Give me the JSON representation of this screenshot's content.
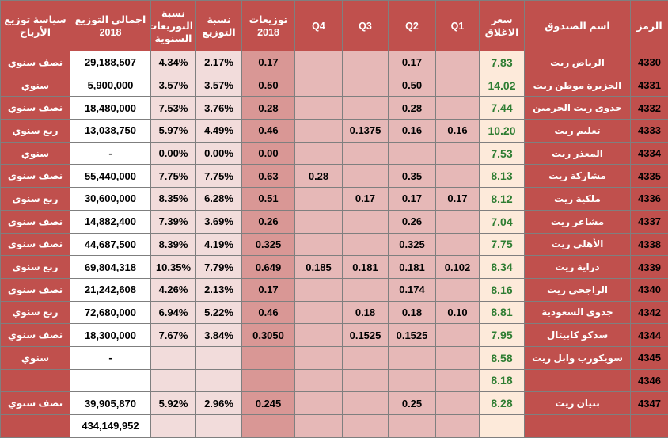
{
  "table": {
    "header": [
      "الرمز",
      "اسم الصندوق",
      "سعر الاغلاق",
      "Q1",
      "Q2",
      "Q3",
      "Q4",
      "توزيعات 2018",
      "نسبة التوزيع",
      "نسبة التوزيعات السنوية",
      "اجمالي التوزيع 2018",
      "سياسة توزيع الأرباح"
    ],
    "rows": [
      [
        "4330",
        "الرياض ريت",
        "7.83",
        null,
        "0.17",
        null,
        null,
        "0.17",
        "2.17%",
        "4.34%",
        "29,188,507",
        "نصف سنوي"
      ],
      [
        "4331",
        "الجزيرة موطن ريت",
        "14.02",
        null,
        "0.50",
        null,
        null,
        "0.50",
        "3.57%",
        "3.57%",
        "5,900,000",
        "سنوي"
      ],
      [
        "4332",
        "جدوى ريت الحرمين",
        "7.44",
        null,
        "0.28",
        null,
        null,
        "0.28",
        "3.76%",
        "7.53%",
        "18,480,000",
        "نصف سنوي"
      ],
      [
        "4333",
        "تعليم ريت",
        "10.20",
        "0.16",
        "0.16",
        "0.1375",
        null,
        "0.46",
        "4.49%",
        "5.97%",
        "13,038,750",
        "ربع سنوي"
      ],
      [
        "4334",
        "المعذر ريت",
        "7.53",
        null,
        null,
        null,
        null,
        "0.00",
        "0.00%",
        "0.00%",
        "-",
        "سنوي"
      ],
      [
        "4335",
        "مشاركة ريت",
        "8.13",
        null,
        "0.35",
        null,
        "0.28",
        "0.63",
        "7.75%",
        "7.75%",
        "55,440,000",
        "نصف سنوي"
      ],
      [
        "4336",
        "ملكية ريت",
        "8.12",
        "0.17",
        "0.17",
        "0.17",
        null,
        "0.51",
        "6.28%",
        "8.35%",
        "30,600,000",
        "ربع سنوي"
      ],
      [
        "4337",
        "مشاعر ريت",
        "7.04",
        null,
        "0.26",
        null,
        null,
        "0.26",
        "3.69%",
        "7.39%",
        "14,882,400",
        "نصف سنوي"
      ],
      [
        "4338",
        "الأهلي ريت",
        "7.75",
        null,
        "0.325",
        null,
        null,
        "0.325",
        "4.19%",
        "8.39%",
        "44,687,500",
        "نصف سنوي"
      ],
      [
        "4339",
        "دراية ريت",
        "8.34",
        "0.102",
        "0.181",
        "0.181",
        "0.185",
        "0.649",
        "7.79%",
        "10.35%",
        "69,804,318",
        "ربع سنوي"
      ],
      [
        "4340",
        "الراجحي ريت",
        "8.16",
        null,
        "0.174",
        null,
        null,
        "0.17",
        "2.13%",
        "4.26%",
        "21,242,608",
        "نصف سنوي"
      ],
      [
        "4342",
        "جدوى السعودية",
        "8.81",
        "0.10",
        "0.18",
        "0.18",
        null,
        "0.46",
        "5.22%",
        "6.94%",
        "72,680,000",
        "ربع سنوي"
      ],
      [
        "4344",
        "سدكو كابيتال",
        "7.95",
        null,
        "0.1525",
        "0.1525",
        null,
        "0.3050",
        "3.84%",
        "7.67%",
        "18,300,000",
        "نصف سنوي"
      ],
      [
        "4345",
        "سويكورب وابل ريت",
        "8.58",
        null,
        null,
        null,
        null,
        null,
        null,
        null,
        "-",
        "سنوي"
      ],
      [
        "4346",
        null,
        "8.18",
        null,
        null,
        null,
        null,
        null,
        null,
        null,
        null,
        null
      ],
      [
        "4347",
        "بنيان ريت",
        "8.28",
        null,
        "0.25",
        null,
        null,
        "0.245",
        "2.96%",
        "5.92%",
        "39,905,870",
        "نصف سنوي"
      ],
      [
        null,
        null,
        null,
        null,
        null,
        null,
        null,
        null,
        null,
        null,
        "434,149,952",
        null
      ]
    ]
  }
}
